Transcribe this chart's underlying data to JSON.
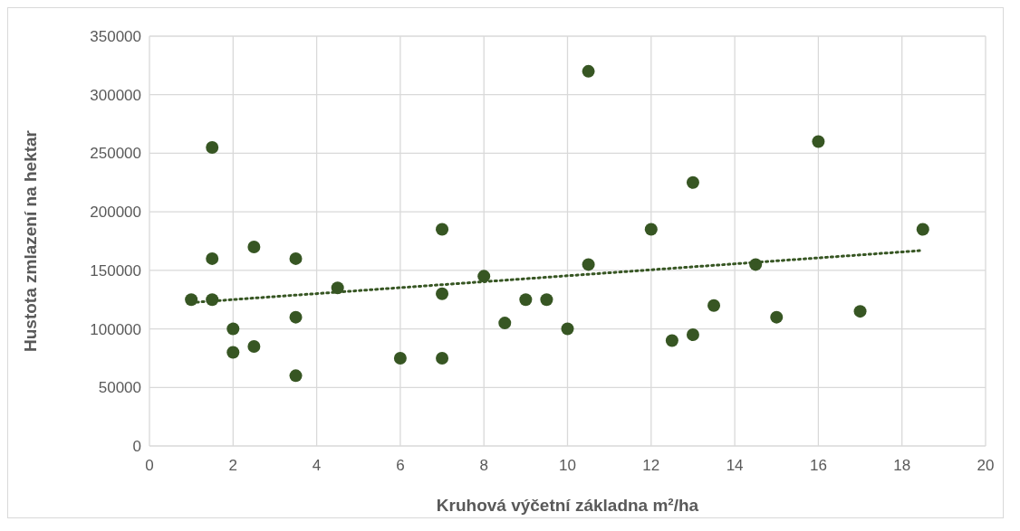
{
  "chart_data": {
    "type": "scatter",
    "xlabel": "Kruhová výčetní základna m²/ha",
    "ylabel": "Hustota zmlazení na hektar",
    "xlim": [
      0,
      20
    ],
    "xticks": [
      0,
      2,
      4,
      6,
      8,
      10,
      12,
      14,
      16,
      18,
      20
    ],
    "ylim": [
      0,
      350000
    ],
    "yticks": [
      0,
      50000,
      100000,
      150000,
      200000,
      250000,
      300000,
      350000
    ],
    "grid": true,
    "series": [
      {
        "color": "#375623",
        "marker": "circle",
        "x": [
          1,
          1.5,
          1.5,
          1.5,
          2,
          2,
          2.5,
          2.5,
          3.5,
          3.5,
          3.5,
          4.5,
          6,
          7,
          7,
          7,
          8,
          8.5,
          9,
          9.5,
          10,
          10.5,
          10.5,
          12,
          12.5,
          13,
          13,
          13.5,
          14.5,
          15,
          16,
          17,
          18.5
        ],
        "values": [
          125000,
          255000,
          160000,
          125000,
          100000,
          80000,
          170000,
          85000,
          160000,
          110000,
          60000,
          135000,
          75000,
          185000,
          130000,
          75000,
          145000,
          105000,
          125000,
          125000,
          100000,
          320000,
          155000,
          185000,
          90000,
          225000,
          95000,
          120000,
          155000,
          110000,
          260000,
          115000,
          185000
        ]
      },
      {
        "type": "line",
        "color": "#375623",
        "line_style": "dotted",
        "x": [
          1,
          18.5
        ],
        "values": [
          122500,
          167000
        ]
      }
    ]
  }
}
